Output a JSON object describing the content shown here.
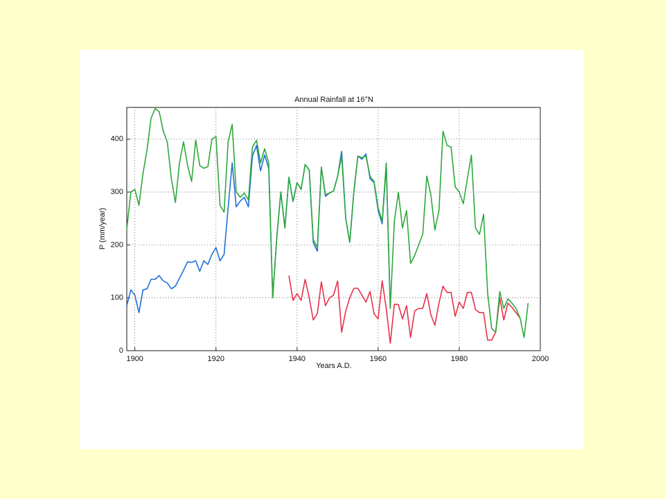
{
  "chart_data": {
    "type": "line",
    "title": "Annual Rainfall at 16°N",
    "x_label": "Years A.D.",
    "y_label": "P (mm/year)",
    "x": [
      1898,
      1899,
      1900,
      1901,
      1902,
      1903,
      1904,
      1905,
      1906,
      1907,
      1908,
      1909,
      1910,
      1911,
      1912,
      1913,
      1914,
      1915,
      1916,
      1917,
      1918,
      1919,
      1920,
      1921,
      1922,
      1923,
      1924,
      1925,
      1926,
      1927,
      1928,
      1929,
      1930,
      1931,
      1932,
      1933,
      1934,
      1935,
      1936,
      1937,
      1938,
      1939,
      1940,
      1941,
      1942,
      1943,
      1944,
      1945,
      1946,
      1947,
      1948,
      1949,
      1950,
      1951,
      1952,
      1953,
      1954,
      1955,
      1956,
      1957,
      1958,
      1959,
      1960,
      1961,
      1962,
      1963,
      1964,
      1965,
      1966,
      1967,
      1968,
      1969,
      1970,
      1971,
      1972,
      1973,
      1974,
      1975,
      1976,
      1977,
      1978,
      1979,
      1980,
      1981,
      1982,
      1983,
      1984,
      1985,
      1986,
      1987,
      1988,
      1989,
      1990,
      1991,
      1992,
      1993,
      1994,
      1995,
      1996,
      1997
    ],
    "series": [
      {
        "color": "#1f6fd6",
        "values": [
          85,
          115,
          105,
          72,
          115,
          117,
          135,
          135,
          142,
          132,
          128,
          117,
          122,
          137,
          152,
          168,
          167,
          170,
          150,
          170,
          163,
          182,
          195,
          170,
          182,
          270,
          355,
          272,
          283,
          290,
          272,
          368,
          388,
          340,
          370,
          345,
          100,
          215,
          300,
          232,
          328,
          282,
          318,
          305,
          352,
          342,
          205,
          188,
          347,
          292,
          298,
          302,
          330,
          377,
          250,
          205,
          300,
          368,
          362,
          372,
          325,
          318,
          265,
          240,
          350,
          80,
          null,
          null,
          null,
          null,
          null,
          null,
          null,
          null,
          null,
          null,
          null,
          null,
          null,
          null,
          null,
          null,
          null,
          null,
          null,
          null,
          null,
          null,
          null,
          null,
          null,
          null,
          null,
          null,
          null,
          null,
          null,
          null,
          null,
          null
        ]
      },
      {
        "color": "#e8304a",
        "values": [
          null,
          null,
          null,
          null,
          null,
          null,
          null,
          null,
          null,
          null,
          null,
          null,
          null,
          null,
          null,
          null,
          null,
          null,
          null,
          null,
          null,
          null,
          null,
          null,
          null,
          null,
          null,
          null,
          null,
          null,
          null,
          null,
          null,
          null,
          null,
          null,
          null,
          null,
          null,
          null,
          142,
          95,
          108,
          95,
          135,
          100,
          58,
          70,
          130,
          85,
          100,
          105,
          132,
          35,
          75,
          100,
          118,
          118,
          105,
          92,
          112,
          70,
          60,
          132,
          80,
          14,
          88,
          87,
          60,
          85,
          25,
          75,
          80,
          80,
          108,
          68,
          48,
          90,
          122,
          110,
          110,
          65,
          92,
          80,
          110,
          110,
          78,
          72,
          72,
          20,
          20,
          35,
          100,
          58,
          90,
          82,
          72,
          62,
          null,
          null
        ]
      },
      {
        "color": "#2ea83a",
        "values": [
          230,
          300,
          305,
          275,
          335,
          380,
          440,
          458,
          452,
          415,
          395,
          325,
          280,
          355,
          395,
          350,
          320,
          398,
          350,
          345,
          348,
          400,
          405,
          275,
          262,
          395,
          428,
          300,
          290,
          298,
          285,
          385,
          398,
          355,
          382,
          355,
          100,
          215,
          300,
          232,
          328,
          282,
          318,
          305,
          352,
          342,
          210,
          195,
          347,
          295,
          298,
          302,
          330,
          368,
          250,
          205,
          300,
          368,
          365,
          368,
          330,
          320,
          270,
          245,
          355,
          80,
          245,
          300,
          232,
          265,
          165,
          180,
          200,
          220,
          330,
          295,
          228,
          265,
          415,
          388,
          385,
          310,
          300,
          278,
          325,
          370,
          232,
          220,
          258,
          110,
          42,
          35,
          112,
          80,
          98,
          90,
          80,
          62,
          25,
          90
        ]
      }
    ],
    "xlim": [
      1898,
      2000
    ],
    "ylim": [
      0,
      460
    ],
    "xticks": [
      1900,
      1920,
      1940,
      1960,
      1980,
      2000
    ],
    "yticks": [
      0,
      100,
      200,
      300,
      400
    ],
    "grid": true
  }
}
